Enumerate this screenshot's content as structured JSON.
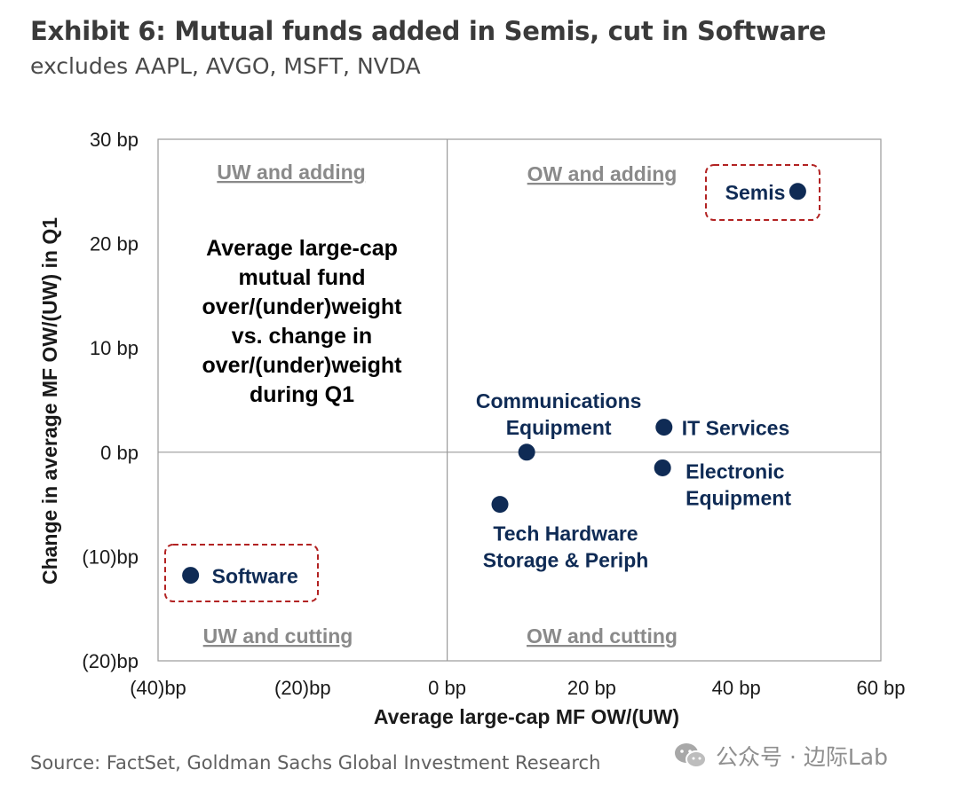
{
  "header": {
    "title": "Exhibit 6: Mutual funds added in Semis, cut in Software",
    "subtitle": "excludes AAPL, AVGO, MSFT, NVDA"
  },
  "footer": {
    "source": "Source: FactSet, Goldman Sachs Global Investment Research"
  },
  "watermark": {
    "text": "公众号 · 边际Lab",
    "icon": "wechat-icon"
  },
  "chart_data": {
    "type": "scatter",
    "title": "",
    "xlabel": "Average large-cap MF OW/(UW)",
    "ylabel": "Change in average MF OW/(UW) in Q1",
    "xlim": [
      -40,
      60
    ],
    "ylim": [
      -20,
      30
    ],
    "x_ticks": [
      {
        "value": -40,
        "label": "(40)bp"
      },
      {
        "value": -20,
        "label": "(20)bp"
      },
      {
        "value": 0,
        "label": "0 bp"
      },
      {
        "value": 20,
        "label": "20 bp"
      },
      {
        "value": 40,
        "label": "40 bp"
      },
      {
        "value": 60,
        "label": "60 bp"
      }
    ],
    "y_ticks": [
      {
        "value": 30,
        "label": "30 bp"
      },
      {
        "value": 20,
        "label": "20 bp"
      },
      {
        "value": 10,
        "label": "10 bp"
      },
      {
        "value": 0,
        "label": "0 bp"
      },
      {
        "value": -10,
        "label": "(10)bp"
      },
      {
        "value": -20,
        "label": "(20)bp"
      }
    ],
    "grid": false,
    "legend": "none",
    "marker_color": "#0f2b55",
    "highlight_color": "#b22222",
    "quadrant_labels": [
      {
        "text": "UW and adding",
        "position": "top-left"
      },
      {
        "text": "OW and adding",
        "position": "top-right"
      },
      {
        "text": "UW and cutting",
        "position": "bottom-left"
      },
      {
        "text": "OW and cutting",
        "position": "bottom-right"
      }
    ],
    "annotation_lines": [
      "Average large-cap",
      "mutual fund",
      "over/(under)weight",
      "vs. change in",
      "over/(under)weight",
      "during Q1"
    ],
    "points": [
      {
        "name": "Semis",
        "label_lines": [
          "Semis"
        ],
        "x": 48.5,
        "y": 25,
        "highlight": true
      },
      {
        "name": "Communications Equipment",
        "label_lines": [
          "Communications",
          "Equipment"
        ],
        "x": 11,
        "y": 0,
        "highlight": false
      },
      {
        "name": "IT Services",
        "label_lines": [
          "IT Services"
        ],
        "x": 30,
        "y": 2.4,
        "highlight": false
      },
      {
        "name": "Electronic Equipment",
        "label_lines": [
          "Electronic",
          "Equipment"
        ],
        "x": 29.8,
        "y": -1.5,
        "highlight": false
      },
      {
        "name": "Tech Hardware Storage & Periph",
        "label_lines": [
          "Tech Hardware",
          "Storage & Periph"
        ],
        "x": 7.3,
        "y": -5,
        "highlight": false
      },
      {
        "name": "Software",
        "label_lines": [
          "Software"
        ],
        "x": -35.5,
        "y": -11.8,
        "highlight": true
      }
    ]
  }
}
